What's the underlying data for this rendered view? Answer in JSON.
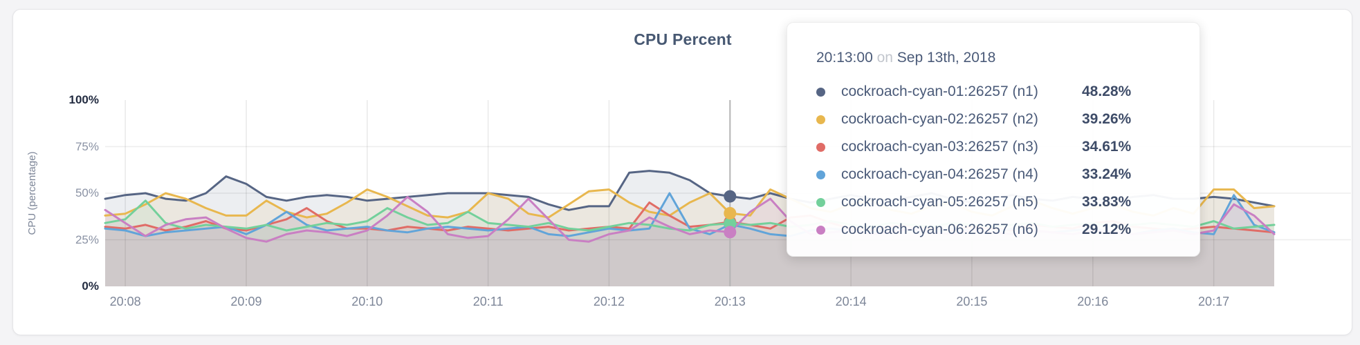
{
  "page": {
    "card_background": "#ffffff",
    "page_background": "#f4f4f6"
  },
  "chart_data": {
    "type": "line",
    "title": "CPU Percent",
    "xlabel": "",
    "ylabel": "CPU (percentage)",
    "ylim": [
      0,
      100
    ],
    "grid": true,
    "legend_position": "tooltip-only",
    "x_start_time": "20:07:50",
    "x_step_seconds": 10,
    "x_ticks": [
      {
        "label": "20:08",
        "sec": 10
      },
      {
        "label": "20:09",
        "sec": 70
      },
      {
        "label": "20:10",
        "sec": 130
      },
      {
        "label": "20:11",
        "sec": 190
      },
      {
        "label": "20:12",
        "sec": 250
      },
      {
        "label": "20:13",
        "sec": 310
      },
      {
        "label": "20:14",
        "sec": 370
      },
      {
        "label": "20:15",
        "sec": 430
      },
      {
        "label": "20:16",
        "sec": 490
      },
      {
        "label": "20:17",
        "sec": 550
      }
    ],
    "y_ticks": [
      {
        "label": "0%",
        "value": 0,
        "strong": true,
        "gridline": false
      },
      {
        "label": "25%",
        "value": 25,
        "strong": false,
        "gridline": true
      },
      {
        "label": "50%",
        "value": 50,
        "strong": false,
        "gridline": true
      },
      {
        "label": "75%",
        "value": 75,
        "strong": false,
        "gridline": true
      },
      {
        "label": "100%",
        "value": 100,
        "strong": true,
        "gridline": false
      }
    ],
    "series": [
      {
        "name": "cockroach-cyan-01:26257 (n1)",
        "node": "n1",
        "color": "#566584",
        "values": [
          47,
          49,
          50,
          47,
          46,
          50,
          59,
          55,
          48,
          46,
          48,
          49,
          48,
          46,
          47,
          48,
          49,
          50,
          50,
          50,
          49,
          48,
          44,
          41,
          43,
          43,
          61,
          62,
          61,
          57,
          50,
          48.28,
          47,
          50,
          47,
          45,
          47,
          49,
          47,
          46,
          48,
          50,
          47,
          45,
          47,
          49,
          47,
          46,
          48,
          47,
          46,
          48,
          49,
          47,
          47,
          48,
          47,
          45,
          43
        ]
      },
      {
        "name": "cockroach-cyan-02:26257 (n2)",
        "node": "n2",
        "color": "#e8b74e",
        "values": [
          38,
          39,
          44,
          50,
          47,
          42,
          38,
          38,
          46,
          40,
          37,
          39,
          45,
          52,
          48,
          43,
          38,
          37,
          40,
          50,
          47,
          39,
          37,
          44,
          51,
          52,
          45,
          40,
          38,
          45,
          50,
          39.26,
          38,
          52,
          47,
          42,
          40,
          44,
          46,
          41,
          39,
          43,
          45,
          40,
          38,
          43,
          46,
          42,
          39,
          42,
          44,
          40,
          38,
          42,
          39,
          52,
          52,
          42,
          43
        ]
      },
      {
        "name": "cockroach-cyan-03:26257 (n3)",
        "node": "n3",
        "color": "#e06c66",
        "values": [
          32,
          31,
          33,
          30,
          32,
          35,
          31,
          30,
          33,
          36,
          42,
          35,
          31,
          31,
          30,
          32,
          31,
          30,
          32,
          31,
          30,
          31,
          32,
          30,
          31,
          32,
          31,
          45,
          38,
          32,
          33,
          34.61,
          33,
          31,
          37,
          38,
          34,
          31,
          30,
          32,
          33,
          31,
          30,
          32,
          31,
          30,
          33,
          32,
          31,
          34,
          35,
          32,
          31,
          30,
          31,
          32,
          31,
          30,
          29
        ]
      },
      {
        "name": "cockroach-cyan-04:26257 (n4)",
        "node": "n4",
        "color": "#61a4d9",
        "values": [
          31,
          30,
          27,
          29,
          30,
          31,
          32,
          28,
          33,
          40,
          33,
          30,
          31,
          32,
          30,
          29,
          31,
          32,
          31,
          30,
          31,
          32,
          28,
          27,
          29,
          31,
          30,
          31,
          50,
          31,
          28,
          33.24,
          31,
          28,
          27,
          30,
          31,
          30,
          29,
          31,
          30,
          29,
          31,
          30,
          29,
          31,
          30,
          29,
          30,
          31,
          29,
          28,
          30,
          31,
          29,
          28,
          49,
          33,
          29
        ]
      },
      {
        "name": "cockroach-cyan-05:26257 (n5)",
        "node": "n5",
        "color": "#73d09b",
        "values": [
          34,
          36,
          46,
          34,
          31,
          33,
          32,
          31,
          33,
          30,
          32,
          34,
          33,
          35,
          42,
          37,
          33,
          34,
          40,
          34,
          33,
          32,
          34,
          31,
          30,
          32,
          34,
          33,
          31,
          30,
          33,
          33.83,
          33,
          34,
          32,
          33,
          35,
          33,
          32,
          34,
          33,
          32,
          34,
          33,
          32,
          33,
          34,
          32,
          33,
          34,
          32,
          33,
          34,
          33,
          32,
          35,
          31,
          32,
          33
        ]
      },
      {
        "name": "cockroach-cyan-06:26257 (n6)",
        "node": "n6",
        "color": "#c97fc3",
        "values": [
          41,
          34,
          27,
          33,
          36,
          37,
          31,
          26,
          24,
          28,
          30,
          29,
          27,
          30,
          38,
          48,
          40,
          28,
          26,
          27,
          36,
          47,
          36,
          25,
          24,
          28,
          30,
          37,
          32,
          28,
          30,
          29.12,
          40,
          47,
          35,
          28,
          29,
          30,
          28,
          29,
          31,
          29,
          28,
          30,
          29,
          28,
          30,
          29,
          28,
          30,
          29,
          28,
          29,
          30,
          28,
          30,
          44,
          38,
          28
        ]
      }
    ]
  },
  "hover": {
    "index": 31,
    "time": "20:13:00"
  },
  "tooltip": {
    "time": "20:13:00",
    "connector": "on",
    "date": "Sep 13th, 2018",
    "rows": [
      {
        "label": "cockroach-cyan-01:26257 (n1)",
        "value": "48.28%",
        "value_pct": 48.28,
        "color": "#566584"
      },
      {
        "label": "cockroach-cyan-02:26257 (n2)",
        "value": "39.26%",
        "value_pct": 39.26,
        "color": "#e8b74e"
      },
      {
        "label": "cockroach-cyan-03:26257 (n3)",
        "value": "34.61%",
        "value_pct": 34.61,
        "color": "#e06c66"
      },
      {
        "label": "cockroach-cyan-04:26257 (n4)",
        "value": "33.24%",
        "value_pct": 33.24,
        "color": "#61a4d9"
      },
      {
        "label": "cockroach-cyan-05:26257 (n5)",
        "value": "33.83%",
        "value_pct": 33.83,
        "color": "#73d09b"
      },
      {
        "label": "cockroach-cyan-06:26257 (n6)",
        "value": "29.12%",
        "value_pct": 29.12,
        "color": "#c97fc3"
      }
    ]
  }
}
